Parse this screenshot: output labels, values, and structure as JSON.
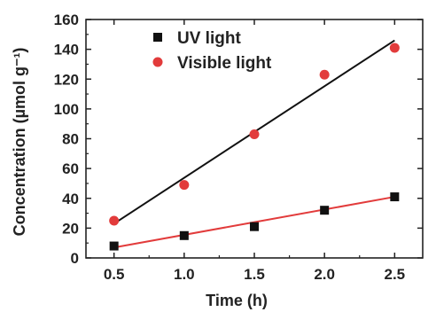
{
  "chart_data": {
    "type": "scatter",
    "title": "",
    "xlabel": "Time (h)",
    "ylabel": "Concentration (µmol g⁻¹)",
    "xlim": [
      0.3,
      2.7
    ],
    "ylim": [
      0,
      160
    ],
    "xticks": [
      "0.5",
      "1.0",
      "1.5",
      "2.0",
      "2.5"
    ],
    "yticks": [
      "0",
      "20",
      "40",
      "60",
      "80",
      "100",
      "120",
      "140",
      "160"
    ],
    "grid": false,
    "legend_position": "top-left",
    "series": [
      {
        "name": "UV light",
        "marker": "square",
        "marker_color": "#111111",
        "fit_line_color": "#e23b3b",
        "x": [
          0.5,
          1.0,
          1.5,
          2.0,
          2.5
        ],
        "y": [
          8,
          15,
          21,
          32,
          41
        ],
        "fit": [
          [
            0.5,
            7
          ],
          [
            2.5,
            41
          ]
        ]
      },
      {
        "name": "Visible light",
        "marker": "circle",
        "marker_color": "#e23b3b",
        "fit_line_color": "#111111",
        "x": [
          0.5,
          1.0,
          1.5,
          2.0,
          2.5
        ],
        "y": [
          25,
          49,
          83,
          123,
          141
        ],
        "fit": [
          [
            0.5,
            23
          ],
          [
            2.5,
            146
          ]
        ]
      }
    ]
  }
}
